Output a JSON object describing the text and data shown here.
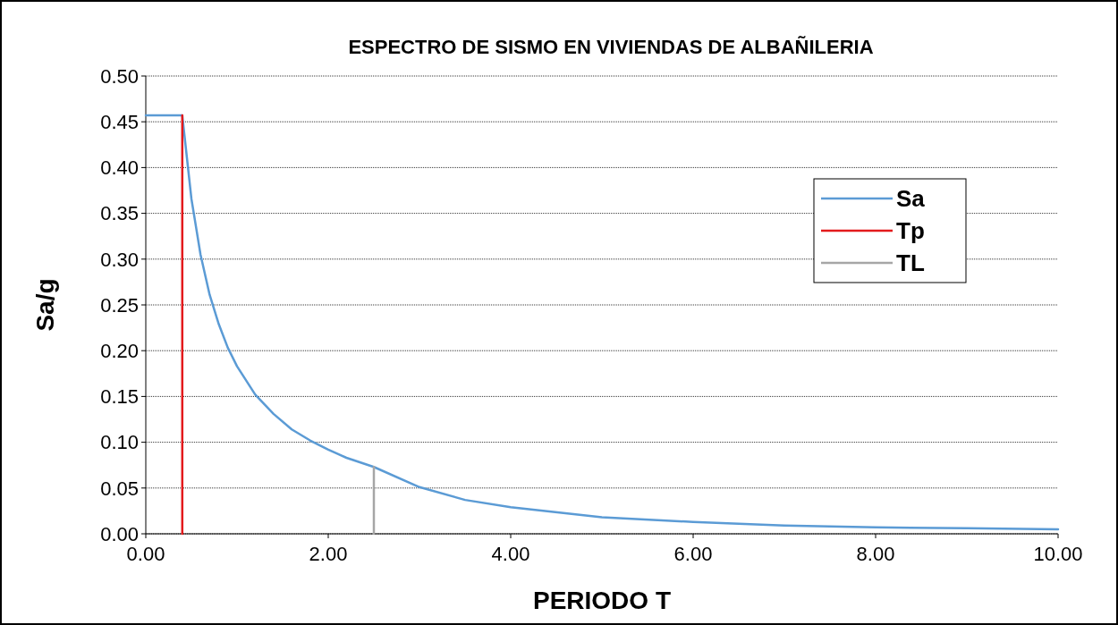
{
  "chart_data": {
    "type": "line",
    "title": "ESPECTRO DE SISMO EN VIVIENDAS DE ALBAÑILERIA",
    "xlabel": "PERIODO T",
    "ylabel": "Sa/g",
    "xlim": [
      0,
      10
    ],
    "xticks": [
      {
        "value": 0,
        "label": "0.00"
      },
      {
        "value": 2,
        "label": "2.00"
      },
      {
        "value": 4,
        "label": "4.00"
      },
      {
        "value": 6,
        "label": "6.00"
      },
      {
        "value": 8,
        "label": "8.00"
      },
      {
        "value": 10,
        "label": "10.00"
      }
    ],
    "ylim": [
      0,
      0.5
    ],
    "yticks": [
      {
        "value": 0,
        "label": "0.00"
      },
      {
        "value": 0.05,
        "label": "0.05"
      },
      {
        "value": 0.1,
        "label": "0.10"
      },
      {
        "value": 0.15,
        "label": "0.15"
      },
      {
        "value": 0.2,
        "label": "0.20"
      },
      {
        "value": 0.25,
        "label": "0.25"
      },
      {
        "value": 0.3,
        "label": "0.30"
      },
      {
        "value": 0.35,
        "label": "0.35"
      },
      {
        "value": 0.4,
        "label": "0.40"
      },
      {
        "value": 0.45,
        "label": "0.45"
      },
      {
        "value": 0.5,
        "label": "0.50"
      }
    ],
    "grid": "y",
    "legend": "right",
    "marker": "none",
    "line_style": "solid",
    "series": [
      {
        "name": "Sa",
        "color": "#5b9bd5",
        "x": [
          0,
          0.4,
          0.5,
          0.6,
          0.7,
          0.8,
          0.9,
          1.0,
          1.2,
          1.4,
          1.6,
          1.8,
          2.0,
          2.2,
          2.5,
          3.0,
          3.5,
          4,
          5,
          6,
          7,
          8,
          9,
          10
        ],
        "values": [
          0.457,
          0.457,
          0.366,
          0.305,
          0.261,
          0.229,
          0.203,
          0.183,
          0.152,
          0.131,
          0.114,
          0.102,
          0.092,
          0.083,
          0.073,
          0.051,
          0.037,
          0.029,
          0.018,
          0.013,
          0.009,
          0.007,
          0.006,
          0.005
        ]
      },
      {
        "name": "Tp",
        "color": "#e31a1c",
        "x": [
          0.4,
          0.4
        ],
        "values": [
          0,
          0.457
        ]
      },
      {
        "name": "TL",
        "color": "#a6a6a6",
        "x": [
          2.5,
          2.5
        ],
        "values": [
          0,
          0.073
        ]
      }
    ]
  }
}
